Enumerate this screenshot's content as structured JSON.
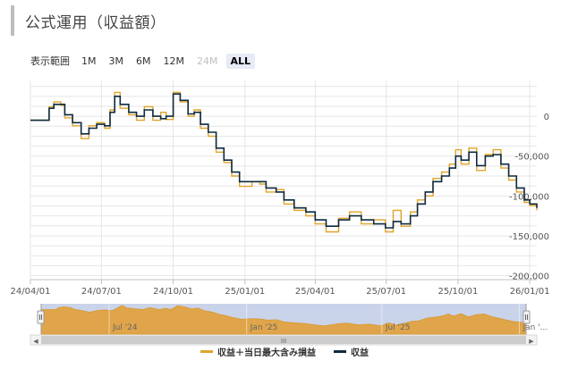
{
  "title": "公式運用（収益額）",
  "range_selector": {
    "label": "表示範囲",
    "buttons": [
      {
        "label": "1M",
        "state": "normal"
      },
      {
        "label": "3M",
        "state": "normal"
      },
      {
        "label": "6M",
        "state": "normal"
      },
      {
        "label": "12M",
        "state": "normal"
      },
      {
        "label": "24M",
        "state": "disabled"
      },
      {
        "label": "ALL",
        "state": "active"
      }
    ]
  },
  "colors": {
    "profit": "#0d2a3f",
    "profit_with_loss": "#e0a42a",
    "navigator_fill": "#e0a54a",
    "navigator_mask": "#c9d3ea",
    "grid": "#e6e6e6"
  },
  "chart_data": {
    "type": "line",
    "x_tick_labels": [
      "24/04/01",
      "24/07/01",
      "24/10/01",
      "25/01/01",
      "25/04/01",
      "25/07/01",
      "25/10/01",
      "26/01/01"
    ],
    "y_tick_labels": [
      "0",
      "-50,000",
      "-100,000",
      "-150,000",
      "-200,000"
    ],
    "y_ticks": [
      0,
      -50000,
      -100000,
      -150000,
      -200000
    ],
    "ylim": [
      -205000,
      45000
    ],
    "xlim": [
      "2024-04-01",
      "2026-01-10"
    ],
    "grid": true,
    "legend_position": "bottom",
    "series": [
      {
        "name": "収益",
        "color": "#0d2a3f",
        "points": [
          [
            "2024-04-01",
            -5000
          ],
          [
            "2024-04-20",
            -5000
          ],
          [
            "2024-04-25",
            10000
          ],
          [
            "2024-05-01",
            15000
          ],
          [
            "2024-05-10",
            15000
          ],
          [
            "2024-05-15",
            2000
          ],
          [
            "2024-05-25",
            -8000
          ],
          [
            "2024-06-05",
            -22000
          ],
          [
            "2024-06-15",
            -15000
          ],
          [
            "2024-06-25",
            -10000
          ],
          [
            "2024-07-05",
            -12000
          ],
          [
            "2024-07-12",
            5000
          ],
          [
            "2024-07-18",
            25000
          ],
          [
            "2024-07-25",
            15000
          ],
          [
            "2024-08-05",
            5000
          ],
          [
            "2024-08-15",
            0
          ],
          [
            "2024-08-25",
            8000
          ],
          [
            "2024-09-05",
            0
          ],
          [
            "2024-09-15",
            -3000
          ],
          [
            "2024-09-22",
            0
          ],
          [
            "2024-10-01",
            28000
          ],
          [
            "2024-10-10",
            20000
          ],
          [
            "2024-10-20",
            3000
          ],
          [
            "2024-10-28",
            5000
          ],
          [
            "2024-11-05",
            -10000
          ],
          [
            "2024-11-15",
            -20000
          ],
          [
            "2024-11-25",
            -40000
          ],
          [
            "2024-12-05",
            -55000
          ],
          [
            "2024-12-15",
            -70000
          ],
          [
            "2024-12-25",
            -82000
          ],
          [
            "2025-01-10",
            -82000
          ],
          [
            "2025-01-20",
            -82000
          ],
          [
            "2025-01-28",
            -90000
          ],
          [
            "2025-02-10",
            -95000
          ],
          [
            "2025-02-20",
            -105000
          ],
          [
            "2025-03-05",
            -115000
          ],
          [
            "2025-03-20",
            -120000
          ],
          [
            "2025-04-01",
            -130000
          ],
          [
            "2025-04-15",
            -138000
          ],
          [
            "2025-05-01",
            -130000
          ],
          [
            "2025-05-15",
            -125000
          ],
          [
            "2025-05-30",
            -130000
          ],
          [
            "2025-06-15",
            -135000
          ],
          [
            "2025-06-30",
            -140000
          ],
          [
            "2025-07-10",
            -132000
          ],
          [
            "2025-07-20",
            -135000
          ],
          [
            "2025-08-01",
            -125000
          ],
          [
            "2025-08-10",
            -110000
          ],
          [
            "2025-08-20",
            -95000
          ],
          [
            "2025-08-30",
            -82000
          ],
          [
            "2025-09-10",
            -75000
          ],
          [
            "2025-09-20",
            -65000
          ],
          [
            "2025-09-28",
            -50000
          ],
          [
            "2025-10-05",
            -55000
          ],
          [
            "2025-10-15",
            -45000
          ],
          [
            "2025-10-25",
            -62000
          ],
          [
            "2025-11-05",
            -50000
          ],
          [
            "2025-11-15",
            -48000
          ],
          [
            "2025-11-25",
            -60000
          ],
          [
            "2025-12-05",
            -75000
          ],
          [
            "2025-12-15",
            -90000
          ],
          [
            "2025-12-25",
            -105000
          ],
          [
            "2026-01-01",
            -110000
          ],
          [
            "2026-01-10",
            -115000
          ]
        ]
      },
      {
        "name": "収益＋当日最大含み損益",
        "color": "#e0a42a",
        "points": [
          [
            "2024-04-01",
            -5000
          ],
          [
            "2024-04-20",
            -5000
          ],
          [
            "2024-04-25",
            12000
          ],
          [
            "2024-05-01",
            18000
          ],
          [
            "2024-05-10",
            14000
          ],
          [
            "2024-05-15",
            -2000
          ],
          [
            "2024-05-25",
            -12000
          ],
          [
            "2024-06-05",
            -28000
          ],
          [
            "2024-06-15",
            -12000
          ],
          [
            "2024-06-25",
            -8000
          ],
          [
            "2024-07-05",
            -15000
          ],
          [
            "2024-07-12",
            8000
          ],
          [
            "2024-07-18",
            30000
          ],
          [
            "2024-07-25",
            10000
          ],
          [
            "2024-08-05",
            2000
          ],
          [
            "2024-08-15",
            -5000
          ],
          [
            "2024-08-25",
            12000
          ],
          [
            "2024-09-05",
            -5000
          ],
          [
            "2024-09-15",
            5000
          ],
          [
            "2024-09-22",
            -4000
          ],
          [
            "2024-10-01",
            30000
          ],
          [
            "2024-10-10",
            18000
          ],
          [
            "2024-10-20",
            0
          ],
          [
            "2024-10-28",
            8000
          ],
          [
            "2024-11-05",
            -15000
          ],
          [
            "2024-11-15",
            -25000
          ],
          [
            "2024-11-25",
            -45000
          ],
          [
            "2024-12-05",
            -58000
          ],
          [
            "2024-12-15",
            -75000
          ],
          [
            "2024-12-25",
            -88000
          ],
          [
            "2025-01-10",
            -82000
          ],
          [
            "2025-01-20",
            -85000
          ],
          [
            "2025-01-28",
            -95000
          ],
          [
            "2025-02-10",
            -92000
          ],
          [
            "2025-02-20",
            -110000
          ],
          [
            "2025-03-05",
            -118000
          ],
          [
            "2025-03-20",
            -125000
          ],
          [
            "2025-04-01",
            -135000
          ],
          [
            "2025-04-15",
            -145000
          ],
          [
            "2025-05-01",
            -128000
          ],
          [
            "2025-05-15",
            -120000
          ],
          [
            "2025-05-30",
            -135000
          ],
          [
            "2025-06-15",
            -130000
          ],
          [
            "2025-06-30",
            -145000
          ],
          [
            "2025-07-10",
            -118000
          ],
          [
            "2025-07-20",
            -138000
          ],
          [
            "2025-08-01",
            -120000
          ],
          [
            "2025-08-10",
            -105000
          ],
          [
            "2025-08-20",
            -100000
          ],
          [
            "2025-08-30",
            -78000
          ],
          [
            "2025-09-10",
            -70000
          ],
          [
            "2025-09-20",
            -60000
          ],
          [
            "2025-09-28",
            -42000
          ],
          [
            "2025-10-05",
            -60000
          ],
          [
            "2025-10-15",
            -40000
          ],
          [
            "2025-10-25",
            -68000
          ],
          [
            "2025-11-05",
            -48000
          ],
          [
            "2025-11-15",
            -42000
          ],
          [
            "2025-11-25",
            -65000
          ],
          [
            "2025-12-05",
            -80000
          ],
          [
            "2025-12-15",
            -95000
          ],
          [
            "2025-12-25",
            -108000
          ],
          [
            "2026-01-01",
            -112000
          ],
          [
            "2026-01-10",
            -118000
          ]
        ]
      }
    ]
  },
  "navigator": {
    "labels": [
      {
        "text": "Jul '24",
        "date": "2024-07-01"
      },
      {
        "text": "Jan '25",
        "date": "2025-01-01"
      },
      {
        "text": "Jul '25",
        "date": "2025-07-01"
      },
      {
        "text": "Jan '...",
        "date": "2026-01-01"
      }
    ],
    "scrollbar_grip": "III",
    "left_arrow": "◀",
    "right_arrow": "▶"
  }
}
